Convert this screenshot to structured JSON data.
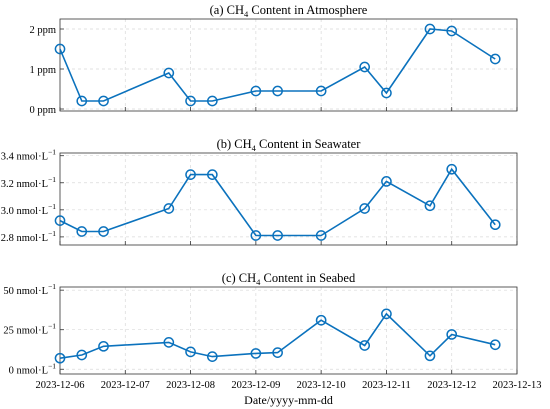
{
  "chart_data": [
    {
      "type": "line",
      "title": {
        "prefix": "(a) CH",
        "sub": "4",
        "suffix": " Content in Atmosphere"
      },
      "x": [
        "2023-12-06 00:00",
        "2023-12-06 08:00",
        "2023-12-06 16:00",
        "2023-12-07 16:00",
        "2023-12-08 00:00",
        "2023-12-08 08:00",
        "2023-12-09 00:00",
        "2023-12-09 08:00",
        "2023-12-10 00:00",
        "2023-12-10 16:00",
        "2023-12-11 00:00",
        "2023-12-11 16:00",
        "2023-12-12 00:00",
        "2023-12-12 16:00"
      ],
      "series": [
        {
          "values": [
            1.5,
            0.2,
            0.2,
            0.9,
            0.2,
            0.2,
            0.45,
            0.45,
            0.45,
            1.05,
            0.4,
            2.0,
            1.95,
            1.25
          ]
        }
      ],
      "ylim": [
        -0.05,
        2.25
      ],
      "yticks": [
        0,
        1,
        2
      ],
      "yticklabels": [
        {
          "main": "0 ppm"
        },
        {
          "main": "1 ppm"
        },
        {
          "main": "2 ppm"
        }
      ],
      "xlim": [
        "2023-12-06 00:00",
        "2023-12-13 00:00"
      ],
      "grid": true,
      "color": "#0b72bd"
    },
    {
      "type": "line",
      "title": {
        "prefix": "(b) CH",
        "sub": "4",
        "suffix": " Content in Seawater"
      },
      "x": [
        "2023-12-06 00:00",
        "2023-12-06 08:00",
        "2023-12-06 16:00",
        "2023-12-07 16:00",
        "2023-12-08 00:00",
        "2023-12-08 08:00",
        "2023-12-09 00:00",
        "2023-12-09 08:00",
        "2023-12-10 00:00",
        "2023-12-10 16:00",
        "2023-12-11 00:00",
        "2023-12-11 16:00",
        "2023-12-12 00:00",
        "2023-12-12 16:00"
      ],
      "series": [
        {
          "values": [
            2.92,
            2.84,
            2.84,
            3.01,
            3.26,
            3.26,
            2.81,
            2.81,
            2.81,
            3.01,
            3.21,
            3.03,
            3.3,
            2.89
          ]
        }
      ],
      "ylim": [
        2.74,
        3.42
      ],
      "yticks": [
        2.8,
        3.0,
        3.2,
        3.4
      ],
      "yticklabels": [
        {
          "main": "2.8 nmol·L",
          "sup": "−1"
        },
        {
          "main": "3.0 nmol·L",
          "sup": "−1"
        },
        {
          "main": "3.2 nmol·L",
          "sup": "−1"
        },
        {
          "main": "3.4 nmol·L",
          "sup": "−1"
        }
      ],
      "xlim": [
        "2023-12-06 00:00",
        "2023-12-13 00:00"
      ],
      "grid": true,
      "color": "#0b72bd"
    },
    {
      "type": "line",
      "title": {
        "prefix": "(c) CH",
        "sub": "4",
        "suffix": " Content in Seabed"
      },
      "x": [
        "2023-12-06 00:00",
        "2023-12-06 08:00",
        "2023-12-06 16:00",
        "2023-12-07 16:00",
        "2023-12-08 00:00",
        "2023-12-08 08:00",
        "2023-12-09 00:00",
        "2023-12-09 08:00",
        "2023-12-10 00:00",
        "2023-12-10 16:00",
        "2023-12-11 00:00",
        "2023-12-11 16:00",
        "2023-12-12 00:00",
        "2023-12-12 16:00"
      ],
      "series": [
        {
          "values": [
            7,
            9,
            14.5,
            17,
            11,
            8,
            10,
            10.5,
            31,
            15,
            35,
            8.5,
            22,
            15.5
          ]
        }
      ],
      "ylim": [
        -3,
        52
      ],
      "yticks": [
        0,
        25,
        50
      ],
      "yticklabels": [
        {
          "main": "0 nmol·L",
          "sup": "−1"
        },
        {
          "main": "25 nmol·L",
          "sup": "−1"
        },
        {
          "main": "50 nmol·L",
          "sup": "−1"
        }
      ],
      "xlim": [
        "2023-12-06 00:00",
        "2023-12-13 00:00"
      ],
      "xticks": [
        "2023-12-06",
        "2023-12-07",
        "2023-12-08",
        "2023-12-09",
        "2023-12-10",
        "2023-12-11",
        "2023-12-12",
        "2023-12-13"
      ],
      "xlabel": "Date/yyyy-mm-dd",
      "grid": true,
      "color": "#0b72bd"
    }
  ]
}
